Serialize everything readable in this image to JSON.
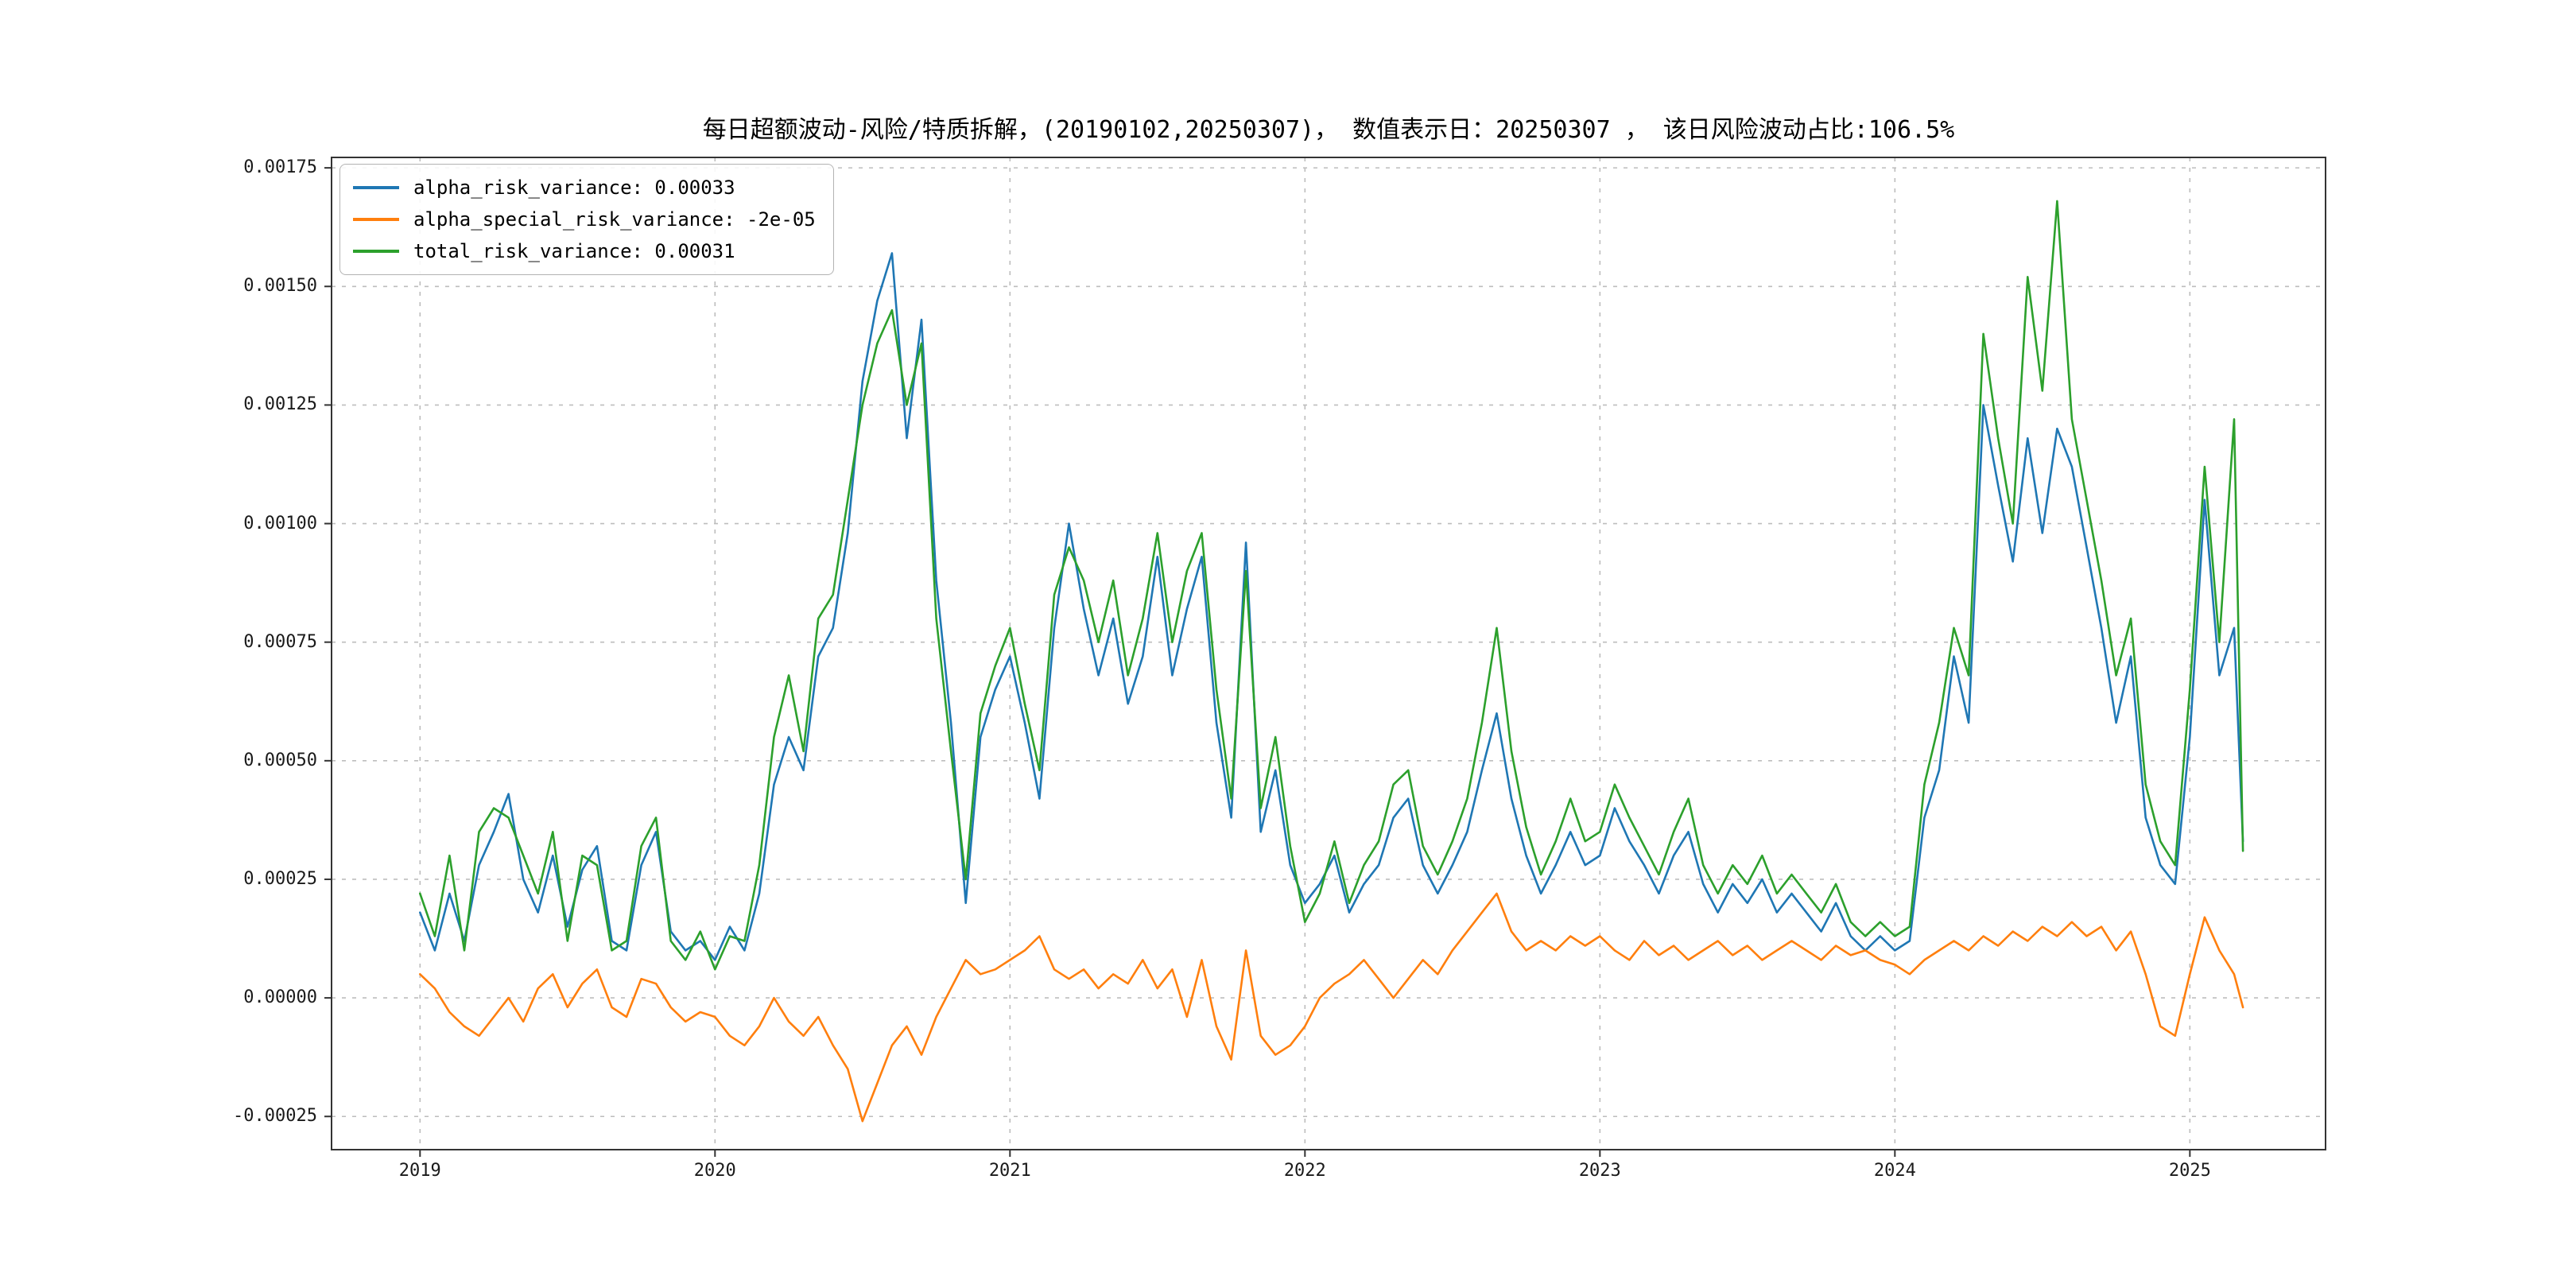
{
  "accent_colors": {
    "blue": "#1f77b4",
    "orange": "#ff7f0e",
    "green": "#2ca02c",
    "grid": "#bdbdbd",
    "spine": "#333333"
  },
  "chart_data": {
    "type": "line",
    "title": "每日超额波动-风险/特质拆解，(20190102,20250307)，  数值表示日：20250307 ， 该日风险波动占比:106.5%",
    "grid": true,
    "legend_position": "upper left",
    "x_axis": {
      "range": [
        2018.7,
        2025.46
      ],
      "ticks": [
        2019,
        2020,
        2021,
        2022,
        2023,
        2024,
        2025
      ],
      "tick_labels": [
        "2019",
        "2020",
        "2021",
        "2022",
        "2023",
        "2024",
        "2025"
      ]
    },
    "y_axis": {
      "range": [
        -0.00032,
        0.001772
      ],
      "ticks": [
        -0.00025,
        0.0,
        0.00025,
        0.0005,
        0.00075,
        0.001,
        0.00125,
        0.0015,
        0.00175
      ],
      "tick_labels": [
        "-0.00025",
        "0.00000",
        "0.00025",
        "0.00050",
        "0.00075",
        "0.00100",
        "0.00125",
        "0.00150",
        "0.00175"
      ]
    },
    "x": [
      2019.0,
      2019.05,
      2019.1,
      2019.15,
      2019.2,
      2019.25,
      2019.3,
      2019.35,
      2019.4,
      2019.45,
      2019.5,
      2019.55,
      2019.6,
      2019.65,
      2019.7,
      2019.75,
      2019.8,
      2019.85,
      2019.9,
      2019.95,
      2020.0,
      2020.05,
      2020.1,
      2020.15,
      2020.2,
      2020.25,
      2020.3,
      2020.35,
      2020.4,
      2020.45,
      2020.5,
      2020.55,
      2020.6,
      2020.65,
      2020.7,
      2020.75,
      2020.8,
      2020.85,
      2020.9,
      2020.95,
      2021.0,
      2021.05,
      2021.1,
      2021.15,
      2021.2,
      2021.25,
      2021.3,
      2021.35,
      2021.4,
      2021.45,
      2021.5,
      2021.55,
      2021.6,
      2021.65,
      2021.7,
      2021.75,
      2021.8,
      2021.85,
      2021.9,
      2021.95,
      2022.0,
      2022.05,
      2022.1,
      2022.15,
      2022.2,
      2022.25,
      2022.3,
      2022.35,
      2022.4,
      2022.45,
      2022.5,
      2022.55,
      2022.6,
      2022.65,
      2022.7,
      2022.75,
      2022.8,
      2022.85,
      2022.9,
      2022.95,
      2023.0,
      2023.05,
      2023.1,
      2023.15,
      2023.2,
      2023.25,
      2023.3,
      2023.35,
      2023.4,
      2023.45,
      2023.5,
      2023.55,
      2023.6,
      2023.65,
      2023.7,
      2023.75,
      2023.8,
      2023.85,
      2023.9,
      2023.95,
      2024.0,
      2024.05,
      2024.1,
      2024.15,
      2024.2,
      2024.25,
      2024.3,
      2024.35,
      2024.4,
      2024.45,
      2024.5,
      2024.55,
      2024.6,
      2024.65,
      2024.7,
      2024.75,
      2024.8,
      2024.85,
      2024.9,
      2024.95,
      2025.0,
      2025.05,
      2025.1,
      2025.15,
      2025.18
    ],
    "series": [
      {
        "name": "alpha_risk_variance",
        "legend_label": "alpha_risk_variance: 0.00033",
        "color": "#1f77b4",
        "last_value": 0.00033,
        "values": [
          0.00018,
          0.0001,
          0.00022,
          0.00012,
          0.00028,
          0.00035,
          0.00043,
          0.00025,
          0.00018,
          0.0003,
          0.00015,
          0.00027,
          0.00032,
          0.00012,
          0.0001,
          0.00028,
          0.00035,
          0.00014,
          0.0001,
          0.00012,
          8e-05,
          0.00015,
          0.0001,
          0.00022,
          0.00045,
          0.00055,
          0.00048,
          0.00072,
          0.00078,
          0.00098,
          0.0013,
          0.00147,
          0.00157,
          0.00118,
          0.00143,
          0.00088,
          0.00058,
          0.0002,
          0.00055,
          0.00065,
          0.00072,
          0.00058,
          0.00042,
          0.00078,
          0.001,
          0.00082,
          0.00068,
          0.0008,
          0.00062,
          0.00072,
          0.00093,
          0.00068,
          0.00082,
          0.00093,
          0.00058,
          0.00038,
          0.00096,
          0.00035,
          0.00048,
          0.00028,
          0.0002,
          0.00024,
          0.0003,
          0.00018,
          0.00024,
          0.00028,
          0.00038,
          0.00042,
          0.00028,
          0.00022,
          0.00028,
          0.00035,
          0.00048,
          0.0006,
          0.00042,
          0.0003,
          0.00022,
          0.00028,
          0.00035,
          0.00028,
          0.0003,
          0.0004,
          0.00033,
          0.00028,
          0.00022,
          0.0003,
          0.00035,
          0.00024,
          0.00018,
          0.00024,
          0.0002,
          0.00025,
          0.00018,
          0.00022,
          0.00018,
          0.00014,
          0.0002,
          0.00013,
          0.0001,
          0.00013,
          0.0001,
          0.00012,
          0.00038,
          0.00048,
          0.00072,
          0.00058,
          0.00125,
          0.00108,
          0.00092,
          0.00118,
          0.00098,
          0.0012,
          0.00112,
          0.00095,
          0.00078,
          0.00058,
          0.00072,
          0.00038,
          0.00028,
          0.00024,
          0.00055,
          0.00105,
          0.00068,
          0.00078,
          0.00033
        ]
      },
      {
        "name": "alpha_special_risk_variance",
        "legend_label": "alpha_special_risk_variance: -2e-05",
        "color": "#ff7f0e",
        "last_value": -2e-05,
        "values": [
          5e-05,
          2e-05,
          -3e-05,
          -6e-05,
          -8e-05,
          -4e-05,
          0.0,
          -5e-05,
          2e-05,
          5e-05,
          -2e-05,
          3e-05,
          6e-05,
          -2e-05,
          -4e-05,
          4e-05,
          3e-05,
          -2e-05,
          -5e-05,
          -3e-05,
          -4e-05,
          -8e-05,
          -0.0001,
          -6e-05,
          0.0,
          -5e-05,
          -8e-05,
          -4e-05,
          -0.0001,
          -0.00015,
          -0.00026,
          -0.00018,
          -0.0001,
          -6e-05,
          -0.00012,
          -4e-05,
          2e-05,
          8e-05,
          5e-05,
          6e-05,
          8e-05,
          0.0001,
          0.00013,
          6e-05,
          4e-05,
          6e-05,
          2e-05,
          5e-05,
          3e-05,
          8e-05,
          2e-05,
          6e-05,
          -4e-05,
          8e-05,
          -6e-05,
          -0.00013,
          0.0001,
          -8e-05,
          -0.00012,
          -0.0001,
          -6e-05,
          0.0,
          3e-05,
          5e-05,
          8e-05,
          4e-05,
          0.0,
          4e-05,
          8e-05,
          5e-05,
          0.0001,
          0.00014,
          0.00018,
          0.00022,
          0.00014,
          0.0001,
          0.00012,
          0.0001,
          0.00013,
          0.00011,
          0.00013,
          0.0001,
          8e-05,
          0.00012,
          9e-05,
          0.00011,
          8e-05,
          0.0001,
          0.00012,
          9e-05,
          0.00011,
          8e-05,
          0.0001,
          0.00012,
          0.0001,
          8e-05,
          0.00011,
          9e-05,
          0.0001,
          8e-05,
          7e-05,
          5e-05,
          8e-05,
          0.0001,
          0.00012,
          0.0001,
          0.00013,
          0.00011,
          0.00014,
          0.00012,
          0.00015,
          0.00013,
          0.00016,
          0.00013,
          0.00015,
          0.0001,
          0.00014,
          5e-05,
          -6e-05,
          -8e-05,
          5e-05,
          0.00017,
          0.0001,
          5e-05,
          -2e-05
        ]
      },
      {
        "name": "total_risk_variance",
        "legend_label": "total_risk_variance: 0.00031",
        "color": "#2ca02c",
        "last_value": 0.00031,
        "values": [
          0.00022,
          0.00013,
          0.0003,
          0.0001,
          0.00035,
          0.0004,
          0.00038,
          0.0003,
          0.00022,
          0.00035,
          0.00012,
          0.0003,
          0.00028,
          0.0001,
          0.00012,
          0.00032,
          0.00038,
          0.00012,
          8e-05,
          0.00014,
          6e-05,
          0.00013,
          0.00012,
          0.00028,
          0.00055,
          0.00068,
          0.00052,
          0.0008,
          0.00085,
          0.00105,
          0.00125,
          0.00138,
          0.00145,
          0.00125,
          0.00138,
          0.0008,
          0.00052,
          0.00025,
          0.0006,
          0.0007,
          0.00078,
          0.00062,
          0.00048,
          0.00085,
          0.00095,
          0.00088,
          0.00075,
          0.00088,
          0.00068,
          0.0008,
          0.00098,
          0.00075,
          0.0009,
          0.00098,
          0.00065,
          0.00042,
          0.0009,
          0.0004,
          0.00055,
          0.00032,
          0.00016,
          0.00022,
          0.00033,
          0.0002,
          0.00028,
          0.00033,
          0.00045,
          0.00048,
          0.00032,
          0.00026,
          0.00033,
          0.00042,
          0.00058,
          0.00078,
          0.00052,
          0.00036,
          0.00026,
          0.00033,
          0.00042,
          0.00033,
          0.00035,
          0.00045,
          0.00038,
          0.00032,
          0.00026,
          0.00035,
          0.00042,
          0.00028,
          0.00022,
          0.00028,
          0.00024,
          0.0003,
          0.00022,
          0.00026,
          0.00022,
          0.00018,
          0.00024,
          0.00016,
          0.00013,
          0.00016,
          0.00013,
          0.00015,
          0.00045,
          0.00058,
          0.00078,
          0.00068,
          0.0014,
          0.00118,
          0.001,
          0.00152,
          0.00128,
          0.00168,
          0.00122,
          0.00105,
          0.00088,
          0.00068,
          0.0008,
          0.00045,
          0.00033,
          0.00028,
          0.00065,
          0.00112,
          0.00075,
          0.00122,
          0.00031
        ]
      }
    ]
  }
}
